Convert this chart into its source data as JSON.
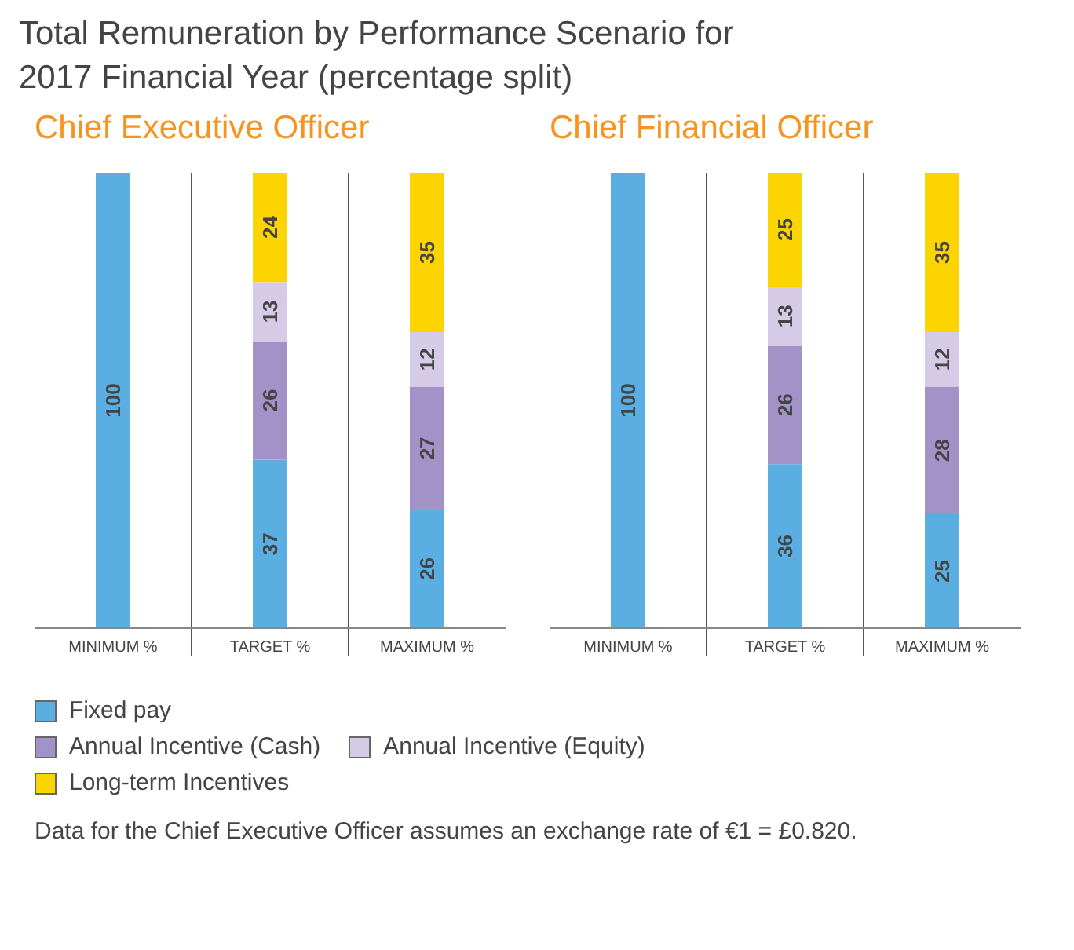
{
  "chart_data": [
    {
      "type": "bar",
      "title": "Total Remuneration by Performance Scenario for 2017 Financial Year (percentage split)",
      "subtitle": "Chief Executive Officer",
      "categories": [
        "MINIMUM %",
        "TARGET %",
        "MAXIMUM %"
      ],
      "stacked": true,
      "data_labels": true,
      "tick_labels": "x",
      "legend": "bottom",
      "series": [
        {
          "name": "Fixed pay",
          "color": "#5aaee2",
          "values": [
            100,
            37,
            26
          ]
        },
        {
          "name": "Annual Incentive (Cash)",
          "color": "#a392c8",
          "values": [
            null,
            26,
            27
          ]
        },
        {
          "name": "Annual Incentive (Equity)",
          "color": "#d5cbe6",
          "values": [
            null,
            13,
            12
          ]
        },
        {
          "name": "Long-term Incentives",
          "color": "#fcd500",
          "values": [
            null,
            24,
            35
          ]
        }
      ],
      "annotations": [
        "Data for the Chief Executive Officer assumes an exchange rate of €1 = £0.820."
      ]
    },
    {
      "type": "bar",
      "subtitle": "Chief Financial Officer",
      "categories": [
        "MINIMUM %",
        "TARGET %",
        "MAXIMUM %"
      ],
      "stacked": true,
      "data_labels": true,
      "tick_labels": "x",
      "series": [
        {
          "color": "#5aaee2",
          "values": [
            100,
            36,
            25
          ]
        },
        {
          "color": "#a392c8",
          "values": [
            null,
            26,
            28
          ]
        },
        {
          "color": "#d5cbe6",
          "values": [
            null,
            13,
            12
          ]
        },
        {
          "color": "#fcd500",
          "values": [
            null,
            25,
            35
          ]
        }
      ]
    }
  ]
}
